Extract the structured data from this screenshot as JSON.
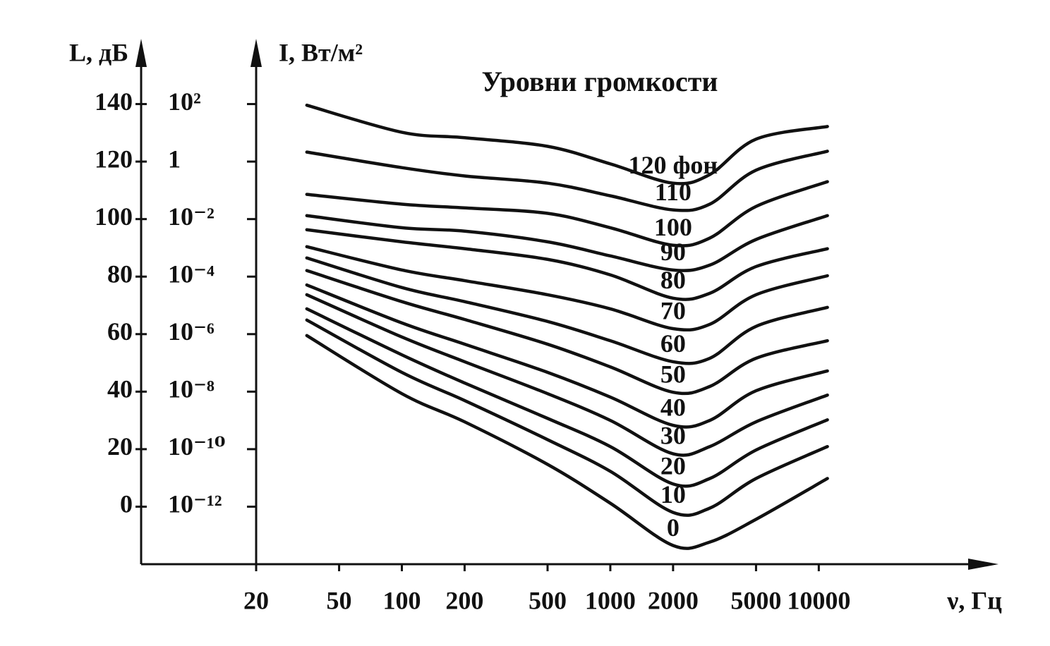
{
  "chart_data": {
    "type": "line",
    "title": "Уровни громкости",
    "ylabel": "L, дБ",
    "y2label": "I, Вт/м²",
    "xlabel": "ν, Гц",
    "xlog": true,
    "xlim": [
      20,
      70000
    ],
    "xticks": [
      20,
      50,
      100,
      200,
      500,
      1000,
      2000,
      5000,
      10000
    ],
    "ylim": [
      -20,
      160
    ],
    "yticks": [
      0,
      20,
      40,
      60,
      80,
      100,
      120,
      140
    ],
    "y2log": true,
    "y2lim": [
      1e-14,
      10000
    ],
    "y2ticks": [
      {
        "value": 1e-12,
        "label": "10⁻¹²"
      },
      {
        "value": 1e-10,
        "label": "10⁻¹⁰"
      },
      {
        "value": 1e-08,
        "label": "10⁻⁸"
      },
      {
        "value": 1e-06,
        "label": "10⁻⁶"
      },
      {
        "value": 0.0001,
        "label": "10⁻⁴"
      },
      {
        "value": 0.01,
        "label": "10⁻²"
      },
      1,
      {
        "value": 100,
        "label": "10²"
      }
    ],
    "x": [
      35,
      100,
      200,
      500,
      1000,
      2000,
      3000,
      5000,
      11000
    ],
    "color": "#111111",
    "series": [
      {
        "name": "120 фон",
        "values": [
          139.6,
          130.2,
          128.3,
          125.3,
          119.2,
          112.5,
          115.5,
          127.8,
          132.2
        ]
      },
      {
        "name": "110",
        "values": [
          123.3,
          117.9,
          115,
          112.5,
          108.1,
          103.2,
          105.2,
          117,
          123.6
        ]
      },
      {
        "name": "100",
        "values": [
          108.6,
          105.2,
          103.9,
          102,
          97,
          90.9,
          93.4,
          104.4,
          113
        ]
      },
      {
        "name": "90",
        "values": [
          101.2,
          97,
          95.8,
          92.1,
          87.2,
          82.3,
          84,
          92.9,
          101.2
        ]
      },
      {
        "name": "80",
        "values": [
          96.3,
          92.1,
          89.7,
          86,
          80.6,
          72.5,
          74.2,
          83.5,
          89.7
        ]
      },
      {
        "name": "70",
        "values": [
          90.4,
          82.3,
          78.6,
          73.7,
          68.8,
          61.9,
          63.4,
          73.7,
          80.3
        ]
      },
      {
        "name": "60",
        "values": [
          86.5,
          76.2,
          71.3,
          64.4,
          57.7,
          50.4,
          51.6,
          62.7,
          69.3
        ]
      },
      {
        "name": "50",
        "values": [
          82.1,
          71.3,
          65.1,
          56.5,
          48.6,
          39.8,
          41.8,
          51.6,
          57.7
        ]
      },
      {
        "name": "40",
        "values": [
          77.1,
          63.9,
          56.5,
          46.7,
          38.1,
          28.3,
          30,
          40.3,
          47.2
        ]
      },
      {
        "name": "30",
        "values": [
          73.7,
          59,
          50.4,
          39.3,
          30,
          18.4,
          20.9,
          29.5,
          38.8
        ]
      },
      {
        "name": "20",
        "values": [
          68.8,
          52.8,
          43,
          30.7,
          20.9,
          7.9,
          9.8,
          19.7,
          30.2
        ]
      },
      {
        "name": "10",
        "values": [
          64.9,
          46.7,
          36.9,
          23.3,
          12.3,
          -2,
          -0.5,
          9.8,
          20.9
        ]
      },
      {
        "name": "0",
        "values": [
          59.5,
          39.3,
          29.5,
          14.7,
          1.2,
          -13.5,
          -12.3,
          -4.4,
          9.8
        ]
      }
    ]
  }
}
